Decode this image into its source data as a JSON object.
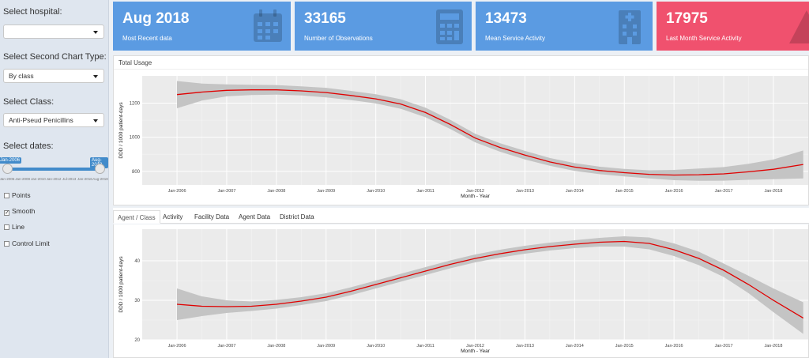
{
  "sidebar": {
    "hospital_label": "Select hospital:",
    "hospital_value": "",
    "chart_type_label": "Select Second Chart Type:",
    "chart_type_value": "By class",
    "class_label": "Select Class:",
    "class_value": "Anti-Pseud Penicillins",
    "dates_label": "Select dates:",
    "slider": {
      "start_tag": "Jan-2006",
      "end_tag": "Aug-2018",
      "ticks": [
        "Jan-2006",
        "Jan-2008",
        "Jan-2010",
        "Jan-2012",
        "Jul-2013",
        "Jan-2016",
        "Aug-2018"
      ]
    },
    "checkboxes": [
      {
        "label": "Points",
        "checked": false
      },
      {
        "label": "Smooth",
        "checked": true
      },
      {
        "label": "Line",
        "checked": false
      },
      {
        "label": "Control Limit",
        "checked": false
      }
    ]
  },
  "value_boxes": [
    {
      "value": "Aug 2018",
      "caption": "Most Recent data",
      "color": "#5b9be2",
      "icon": "calendar-icon"
    },
    {
      "value": "33165",
      "caption": "Number of Observations",
      "color": "#5b9be2",
      "icon": "calculator-icon"
    },
    {
      "value": "13473",
      "caption": "Mean Service Activity",
      "color": "#5b9be2",
      "icon": "hospital-icon"
    },
    {
      "value": "17975",
      "caption": "Last Month Service Activity",
      "color": "#f0516e",
      "icon": "warning-icon"
    }
  ],
  "top_panel": {
    "title": "Total Usage"
  },
  "tabs": [
    "Agent / Class",
    "Activity",
    "Facility Data",
    "Agent Data",
    "District Data"
  ],
  "active_tab": 0,
  "chart_data": [
    {
      "type": "line",
      "title": "Total Usage",
      "xlabel": "Month - Year",
      "ylabel": "DDD / 1000 patient-days",
      "x_ticks": [
        "Jan-2006",
        "Jan-2007",
        "Jan-2008",
        "Jan-2009",
        "Jan-2010",
        "Jan-2011",
        "Jan-2012",
        "Jan-2013",
        "Jan-2014",
        "Jan-2015",
        "Jan-2016",
        "Jan-2017",
        "Jan-2018"
      ],
      "y_ticks": [
        800,
        1000,
        1200
      ],
      "ylim": [
        720,
        1360
      ],
      "xlim": [
        2005.3,
        2018.7
      ],
      "series": [
        {
          "name": "smooth",
          "x": [
            2006.0,
            2006.5,
            2007.0,
            2007.5,
            2008.0,
            2008.5,
            2009.0,
            2009.5,
            2010.0,
            2010.5,
            2011.0,
            2011.5,
            2012.0,
            2012.5,
            2013.0,
            2013.5,
            2014.0,
            2014.5,
            2015.0,
            2015.5,
            2016.0,
            2016.5,
            2017.0,
            2017.5,
            2018.0,
            2018.6
          ],
          "y": [
            1250,
            1265,
            1275,
            1278,
            1278,
            1272,
            1262,
            1245,
            1225,
            1195,
            1145,
            1075,
            995,
            940,
            895,
            855,
            825,
            805,
            792,
            782,
            778,
            780,
            785,
            797,
            812,
            840
          ],
          "lower": [
            1170,
            1215,
            1240,
            1248,
            1250,
            1245,
            1234,
            1218,
            1198,
            1167,
            1117,
            1048,
            970,
            915,
            870,
            832,
            802,
            783,
            770,
            758,
            748,
            744,
            745,
            750,
            754,
            758
          ],
          "upper": [
            1330,
            1315,
            1310,
            1308,
            1306,
            1299,
            1290,
            1272,
            1252,
            1223,
            1173,
            1102,
            1020,
            965,
            920,
            878,
            848,
            827,
            814,
            806,
            808,
            816,
            825,
            844,
            870,
            922
          ]
        }
      ]
    },
    {
      "type": "line",
      "title": "Agent / Class",
      "xlabel": "Month - Year",
      "ylabel": "DDD / 1000 patient-days",
      "x_ticks": [
        "Jan-2006",
        "Jan-2007",
        "Jan-2008",
        "Jan-2009",
        "Jan-2010",
        "Jan-2011",
        "Jan-2012",
        "Jan-2013",
        "Jan-2014",
        "Jan-2015",
        "Jan-2016",
        "Jan-2017",
        "Jan-2018"
      ],
      "y_ticks": [
        20,
        30,
        40
      ],
      "ylim": [
        20,
        48
      ],
      "xlim": [
        2005.3,
        2018.7
      ],
      "series": [
        {
          "name": "smooth",
          "x": [
            2006.0,
            2006.5,
            2007.0,
            2007.5,
            2008.0,
            2008.5,
            2009.0,
            2009.5,
            2010.0,
            2010.5,
            2011.0,
            2011.5,
            2012.0,
            2012.5,
            2013.0,
            2013.5,
            2014.0,
            2014.5,
            2015.0,
            2015.5,
            2016.0,
            2016.5,
            2017.0,
            2017.5,
            2018.0,
            2018.6
          ],
          "y": [
            29.0,
            28.5,
            28.4,
            28.5,
            29.0,
            29.8,
            30.8,
            32.3,
            34.0,
            35.7,
            37.4,
            39.1,
            40.6,
            41.8,
            42.8,
            43.6,
            44.2,
            44.7,
            44.9,
            44.4,
            42.8,
            40.6,
            37.6,
            34.0,
            30.0,
            25.5
          ],
          "lower": [
            25.0,
            26.0,
            26.8,
            27.3,
            27.9,
            28.8,
            29.8,
            31.3,
            33.0,
            34.7,
            36.4,
            38.1,
            39.6,
            40.8,
            41.8,
            42.6,
            43.2,
            43.6,
            43.6,
            42.9,
            41.2,
            38.9,
            35.9,
            31.8,
            27.0,
            21.5
          ],
          "upper": [
            33.0,
            31.0,
            30.0,
            29.7,
            30.1,
            30.8,
            31.8,
            33.3,
            35.0,
            36.7,
            38.4,
            40.1,
            41.6,
            42.8,
            43.8,
            44.6,
            45.2,
            45.8,
            46.2,
            45.9,
            44.4,
            42.3,
            39.3,
            36.2,
            33.0,
            29.5
          ]
        }
      ]
    }
  ]
}
